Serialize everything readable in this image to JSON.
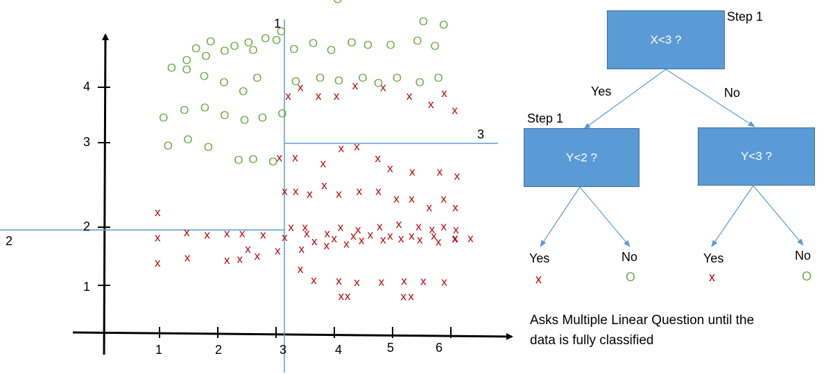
{
  "colors": {
    "axis": "#000000",
    "split_line": "#5b9bd5",
    "x_mark": "#c00000",
    "o_mark": "#70ad47",
    "node_fill": "#5b9bd5",
    "node_border": "#41719c",
    "node_text": "#ffffff",
    "edge": "#5b9bd5"
  },
  "plot": {
    "x_ticks": [
      "1",
      "2",
      "3",
      "4",
      "5",
      "6"
    ],
    "y_ticks": [
      "1",
      "2",
      "3",
      "4"
    ],
    "split_labels": {
      "vertical": "1",
      "left_horizontal": "2",
      "right_horizontal": "3"
    },
    "x_symbol": "x",
    "o_symbol": "O",
    "scatter_x_points": [
      [
        0.92,
        2.13
      ],
      [
        0.92,
        1.73
      ],
      [
        0.92,
        1.25
      ],
      [
        1.42,
        1.83
      ],
      [
        1.77,
        1.78
      ],
      [
        2.11,
        1.81
      ],
      [
        2.37,
        1.81
      ],
      [
        2.73,
        1.78
      ],
      [
        3.1,
        1.74
      ],
      [
        3.48,
        1.81
      ],
      [
        1.43,
        1.35
      ],
      [
        2.11,
        1.3
      ],
      [
        2.33,
        1.32
      ],
      [
        2.47,
        1.51
      ],
      [
        2.63,
        1.38
      ],
      [
        2.98,
        1.48
      ],
      [
        3.16,
        3.51
      ],
      [
        3.37,
        3.61
      ],
      [
        3.68,
        3.51
      ],
      [
        3.99,
        3.51
      ],
      [
        4.31,
        3.63
      ],
      [
        4.79,
        3.61
      ],
      [
        5.24,
        3.51
      ],
      [
        5.61,
        3.41
      ],
      [
        5.84,
        3.54
      ],
      [
        6.02,
        3.34
      ],
      [
        3.01,
        2.78
      ],
      [
        3.28,
        2.78
      ],
      [
        3.76,
        2.71
      ],
      [
        4.07,
        2.89
      ],
      [
        4.34,
        2.91
      ],
      [
        4.7,
        2.77
      ],
      [
        4.91,
        2.65
      ],
      [
        5.29,
        2.61
      ],
      [
        5.76,
        2.61
      ],
      [
        6.06,
        2.56
      ],
      [
        3.1,
        2.38
      ],
      [
        3.29,
        2.38
      ],
      [
        3.53,
        2.35
      ],
      [
        3.78,
        2.45
      ],
      [
        4.03,
        2.35
      ],
      [
        4.38,
        2.38
      ],
      [
        4.71,
        2.38
      ],
      [
        5.02,
        2.29
      ],
      [
        5.28,
        2.29
      ],
      [
        5.58,
        2.19
      ],
      [
        5.83,
        2.29
      ],
      [
        6.03,
        2.19
      ],
      [
        3.21,
        1.93
      ],
      [
        3.45,
        1.93
      ],
      [
        3.83,
        1.81
      ],
      [
        4.06,
        1.93
      ],
      [
        4.36,
        1.88
      ],
      [
        4.73,
        1.94
      ],
      [
        5.06,
        1.99
      ],
      [
        5.4,
        1.94
      ],
      [
        5.63,
        1.89
      ],
      [
        5.83,
        1.94
      ],
      [
        6.04,
        1.88
      ],
      [
        3.61,
        1.66
      ],
      [
        3.95,
        1.71
      ],
      [
        4.28,
        1.76
      ],
      [
        4.57,
        1.78
      ],
      [
        4.91,
        1.76
      ],
      [
        5.28,
        1.76
      ],
      [
        5.66,
        1.76
      ],
      [
        6.03,
        1.72
      ],
      [
        6.29,
        1.72
      ],
      [
        3.39,
        1.51
      ],
      [
        3.82,
        1.58
      ],
      [
        4.16,
        1.61
      ],
      [
        4.42,
        1.68
      ],
      [
        4.79,
        1.69
      ],
      [
        5.1,
        1.71
      ],
      [
        5.42,
        1.69
      ],
      [
        5.74,
        1.65
      ],
      [
        6.02,
        1.71
      ],
      [
        3.37,
        1.13
      ],
      [
        3.6,
        0.92
      ],
      [
        4.03,
        0.91
      ],
      [
        4.34,
        0.88
      ],
      [
        4.76,
        0.89
      ],
      [
        5.15,
        0.91
      ],
      [
        5.48,
        0.9
      ],
      [
        5.84,
        0.89
      ],
      [
        4.07,
        0.62
      ],
      [
        4.18,
        0.62
      ],
      [
        5.14,
        0.61
      ],
      [
        5.27,
        0.61
      ]
    ],
    "scatter_o_points": [
      [
        1.42,
        3.93
      ],
      [
        1.75,
        3.98
      ],
      [
        2.07,
        4.04
      ],
      [
        2.48,
        4.14
      ],
      [
        2.77,
        4.19
      ],
      [
        3.04,
        4.27
      ],
      [
        1.58,
        4.07
      ],
      [
        1.83,
        4.15
      ],
      [
        2.24,
        4.1
      ],
      [
        2.56,
        4.05
      ],
      [
        2.96,
        4.17
      ],
      [
        1.16,
        3.84
      ],
      [
        1.42,
        3.82
      ],
      [
        1.72,
        3.74
      ],
      [
        2.06,
        3.67
      ],
      [
        2.39,
        3.56
      ],
      [
        2.63,
        3.72
      ],
      [
        1.02,
        3.25
      ],
      [
        1.38,
        3.34
      ],
      [
        1.73,
        3.37
      ],
      [
        2.07,
        3.28
      ],
      [
        2.41,
        3.22
      ],
      [
        2.72,
        3.25
      ],
      [
        3.06,
        3.3
      ],
      [
        1.1,
        2.92
      ],
      [
        1.44,
        2.99
      ],
      [
        1.79,
        2.9
      ],
      [
        2.31,
        2.75
      ],
      [
        2.56,
        2.76
      ],
      [
        2.9,
        2.73
      ],
      [
        3.26,
        4.06
      ],
      [
        3.59,
        4.13
      ],
      [
        3.9,
        4.05
      ],
      [
        4.25,
        4.14
      ],
      [
        4.53,
        4.11
      ],
      [
        4.92,
        4.11
      ],
      [
        5.38,
        4.16
      ],
      [
        5.68,
        4.1
      ],
      [
        3.29,
        3.68
      ],
      [
        3.71,
        3.72
      ],
      [
        4.03,
        3.69
      ],
      [
        4.44,
        3.72
      ],
      [
        4.71,
        3.66
      ],
      [
        5.03,
        3.72
      ],
      [
        5.42,
        3.67
      ],
      [
        5.74,
        3.72
      ],
      [
        4.01,
        4.65
      ],
      [
        5.48,
        4.39
      ],
      [
        5.83,
        4.35
      ]
    ]
  },
  "tree": {
    "root": {
      "question": "X<3 ?",
      "step_label": "Step 1"
    },
    "left": {
      "question": "Y<2 ?",
      "step_label": "Step 1"
    },
    "right": {
      "question": "Y<3 ?"
    },
    "edge_labels": {
      "root_yes": "Yes",
      "root_no": "No"
    },
    "leaves": [
      {
        "label": "Yes",
        "mark": "x",
        "kind": "x"
      },
      {
        "label": "No",
        "mark": "O",
        "kind": "o"
      },
      {
        "label": "Yes",
        "mark": "x",
        "kind": "x"
      },
      {
        "label": "No",
        "mark": "O",
        "kind": "o"
      }
    ],
    "note_line1": "Asks Multiple Linear Question until the",
    "note_line2": "data is fully classified"
  }
}
